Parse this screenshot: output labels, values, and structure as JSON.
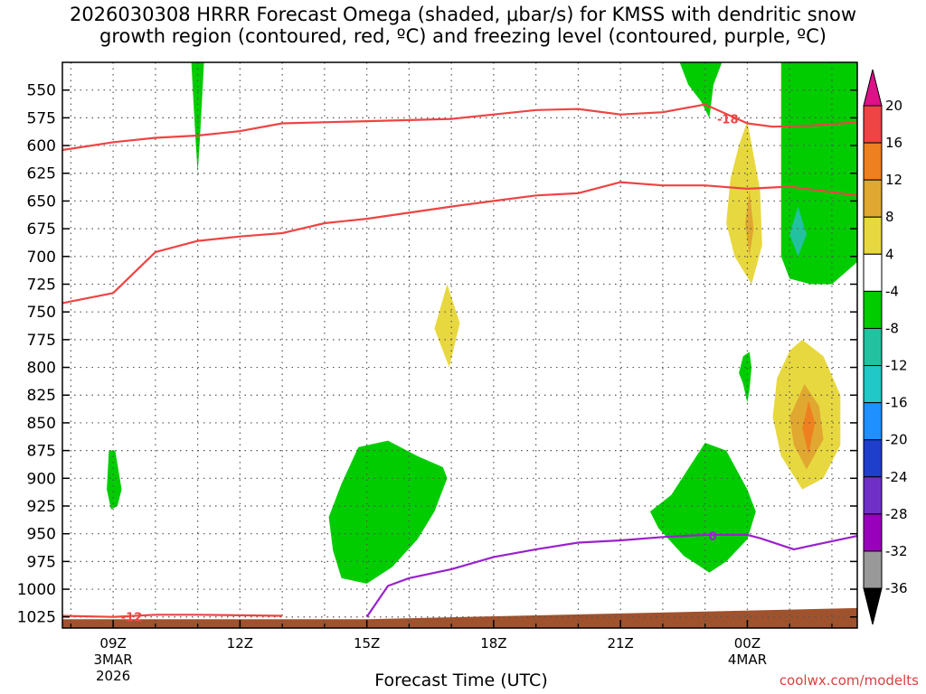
{
  "title_line1": "2026030308 HRRR Forecast Omega (shaded, μbar/s) for KMSS with dendritic snow",
  "title_line2": "growth region (contoured, red, ºC) and freezing level (contoured, purple, ºC)",
  "xlabel": "Forecast Time (UTC)",
  "credit": "coolwx.com/modelts",
  "colors": {
    "snow_contour": "#ee4444",
    "freezing_contour": "#9922cc",
    "terrain": "#a0522d",
    "grid": "#555555"
  },
  "chart_data": {
    "type": "contour",
    "x_domain_hours": [
      7.8,
      26.6
    ],
    "y_domain_hPa": [
      525,
      1035
    ],
    "y_ticks": [
      550,
      575,
      600,
      625,
      650,
      675,
      700,
      725,
      750,
      775,
      800,
      825,
      850,
      875,
      900,
      925,
      950,
      975,
      1000,
      1025
    ],
    "x_ticks": [
      {
        "hour": 9,
        "label": "09Z",
        "sub": [
          "3MAR",
          "2026"
        ]
      },
      {
        "hour": 12,
        "label": "12Z",
        "sub": []
      },
      {
        "hour": 15,
        "label": "15Z",
        "sub": []
      },
      {
        "hour": 18,
        "label": "18Z",
        "sub": []
      },
      {
        "hour": 21,
        "label": "21Z",
        "sub": []
      },
      {
        "hour": 24,
        "label": "00Z",
        "sub": [
          "4MAR"
        ]
      }
    ],
    "minor_x_hours": [
      8,
      10,
      11,
      13,
      14,
      16,
      17,
      19,
      20,
      22,
      23,
      25,
      26
    ],
    "contours": [
      {
        "name": "-18",
        "color": "#ee4444",
        "label_at": [
          23.2,
          576
        ],
        "points": [
          [
            7.8,
            604
          ],
          [
            9,
            597
          ],
          [
            10,
            593
          ],
          [
            11,
            591
          ],
          [
            12,
            587
          ],
          [
            13,
            580
          ],
          [
            15,
            578
          ],
          [
            17,
            576
          ],
          [
            18,
            572
          ],
          [
            19,
            568
          ],
          [
            20,
            567
          ],
          [
            21,
            572
          ],
          [
            22,
            570
          ],
          [
            23,
            563
          ],
          [
            24,
            580
          ],
          [
            24.6,
            583
          ],
          [
            25.5,
            582
          ],
          [
            26.6,
            579
          ]
        ]
      },
      {
        "name": "-12",
        "color": "#ee4444",
        "label_at": [
          9.1,
          1025
        ],
        "points": [
          [
            7.8,
            742
          ],
          [
            9,
            733
          ],
          [
            10,
            696
          ],
          [
            11,
            686
          ],
          [
            12,
            682
          ],
          [
            13,
            679
          ],
          [
            14,
            670
          ],
          [
            15,
            666
          ],
          [
            17,
            655
          ],
          [
            18,
            650
          ],
          [
            19,
            645
          ],
          [
            20,
            643
          ],
          [
            21,
            633
          ],
          [
            22,
            636
          ],
          [
            23,
            636
          ],
          [
            24,
            639
          ],
          [
            25,
            637
          ],
          [
            26.6,
            645
          ]
        ]
      },
      {
        "name": "-12",
        "color": "#ee4444",
        "label_at": null,
        "points": [
          [
            7.8,
            1024
          ],
          [
            9,
            1025
          ],
          [
            10,
            1023
          ],
          [
            11,
            1023
          ],
          [
            12,
            1023.5
          ],
          [
            13,
            1024
          ]
        ]
      },
      {
        "name": "0",
        "color": "#9922cc",
        "label_at": [
          23.0,
          952
        ],
        "points": [
          [
            15,
            1025
          ],
          [
            15.5,
            997
          ],
          [
            16,
            990
          ],
          [
            17,
            982
          ],
          [
            18,
            971
          ],
          [
            19,
            964
          ],
          [
            20,
            958
          ],
          [
            21,
            956
          ],
          [
            22,
            953
          ],
          [
            23,
            951
          ],
          [
            24,
            951
          ],
          [
            24.3,
            954
          ],
          [
            25.1,
            964
          ],
          [
            26.6,
            952
          ]
        ]
      }
    ],
    "terrain_pressure": [
      [
        7.8,
        1027
      ],
      [
        15,
        1027
      ],
      [
        26.6,
        1017
      ]
    ],
    "omega_regions": [
      {
        "name": "green-strip-11z",
        "level": "-8",
        "color": "#00cc00",
        "points": [
          [
            10.85,
            525
          ],
          [
            11.15,
            525
          ],
          [
            11.1,
            560
          ],
          [
            11.05,
            595
          ],
          [
            11.0,
            625
          ],
          [
            10.95,
            595
          ],
          [
            10.9,
            560
          ]
        ]
      },
      {
        "name": "green-top-2230z",
        "level": "-8",
        "color": "#00cc00",
        "points": [
          [
            22.4,
            525
          ],
          [
            23.4,
            525
          ],
          [
            23.2,
            545
          ],
          [
            23.1,
            575
          ],
          [
            22.9,
            560
          ],
          [
            22.6,
            545
          ]
        ]
      },
      {
        "name": "green-right",
        "level": "-8",
        "color": "#00cc00",
        "points": [
          [
            24.8,
            525
          ],
          [
            26.6,
            525
          ],
          [
            26.6,
            705
          ],
          [
            26.3,
            715
          ],
          [
            26.0,
            725
          ],
          [
            25.5,
            725
          ],
          [
            25.0,
            720
          ],
          [
            24.8,
            700
          ],
          [
            24.8,
            600
          ]
        ]
      },
      {
        "name": "green-small-09z",
        "level": "-8",
        "color": "#00cc00",
        "points": [
          [
            8.9,
            875
          ],
          [
            9.05,
            875
          ],
          [
            9.2,
            910
          ],
          [
            9.1,
            925
          ],
          [
            8.95,
            928
          ],
          [
            8.85,
            910
          ]
        ]
      },
      {
        "name": "green-15z",
        "level": "-8",
        "color": "#00cc00",
        "points": [
          [
            14.8,
            872
          ],
          [
            15.5,
            866
          ],
          [
            16.2,
            880
          ],
          [
            16.8,
            890
          ],
          [
            16.9,
            900
          ],
          [
            16.6,
            930
          ],
          [
            16.2,
            955
          ],
          [
            15.6,
            980
          ],
          [
            15.0,
            995
          ],
          [
            14.4,
            990
          ],
          [
            14.2,
            965
          ],
          [
            14.1,
            935
          ],
          [
            14.4,
            905
          ]
        ]
      },
      {
        "name": "green-2300z",
        "level": "-8",
        "color": "#00cc00",
        "points": [
          [
            22.2,
            915
          ],
          [
            23.0,
            868
          ],
          [
            23.5,
            875
          ],
          [
            24.0,
            910
          ],
          [
            24.2,
            930
          ],
          [
            24.0,
            955
          ],
          [
            23.5,
            975
          ],
          [
            23.1,
            985
          ],
          [
            22.5,
            970
          ],
          [
            21.9,
            945
          ],
          [
            21.7,
            930
          ]
        ]
      },
      {
        "name": "green-small-00z",
        "level": "-8",
        "color": "#00cc00",
        "points": [
          [
            23.9,
            790
          ],
          [
            24.05,
            786
          ],
          [
            24.1,
            800
          ],
          [
            24.05,
            820
          ],
          [
            24.0,
            832
          ],
          [
            23.9,
            815
          ],
          [
            23.8,
            805
          ]
        ]
      },
      {
        "name": "yellow-17z",
        "level": "4",
        "color": "#e8d840",
        "points": [
          [
            16.9,
            725
          ],
          [
            17.2,
            760
          ],
          [
            16.95,
            800
          ],
          [
            16.6,
            765
          ]
        ]
      },
      {
        "name": "yellow-00z",
        "level": "4",
        "color": "#e8d840",
        "points": [
          [
            24.0,
            578
          ],
          [
            24.3,
            640
          ],
          [
            24.35,
            690
          ],
          [
            24.1,
            725
          ],
          [
            23.7,
            700
          ],
          [
            23.5,
            670
          ],
          [
            23.6,
            630
          ],
          [
            23.8,
            600
          ]
        ]
      },
      {
        "name": "orange-00z",
        "level": "8",
        "color": "#e0a830",
        "points": [
          [
            24.05,
            640
          ],
          [
            24.15,
            675
          ],
          [
            24.05,
            700
          ],
          [
            23.95,
            670
          ]
        ]
      },
      {
        "name": "yellow-01z",
        "level": "4",
        "color": "#e8d840",
        "points": [
          [
            25.3,
            775
          ],
          [
            25.8,
            790
          ],
          [
            26.2,
            825
          ],
          [
            26.2,
            870
          ],
          [
            25.8,
            900
          ],
          [
            25.3,
            910
          ],
          [
            24.8,
            880
          ],
          [
            24.6,
            845
          ],
          [
            24.7,
            810
          ],
          [
            25.0,
            785
          ]
        ]
      },
      {
        "name": "orange-01z",
        "level": "8",
        "color": "#e0a830",
        "points": [
          [
            25.35,
            815
          ],
          [
            25.7,
            835
          ],
          [
            25.8,
            865
          ],
          [
            25.4,
            892
          ],
          [
            25.1,
            870
          ],
          [
            25.0,
            845
          ]
        ]
      },
      {
        "name": "darkorange-01z",
        "level": "12",
        "color": "#ee8020",
        "points": [
          [
            25.45,
            830
          ],
          [
            25.6,
            850
          ],
          [
            25.45,
            878
          ],
          [
            25.3,
            855
          ]
        ]
      },
      {
        "name": "teal-01z",
        "level": "-12",
        "color": "#22c2a0",
        "points": [
          [
            25.2,
            655
          ],
          [
            25.4,
            680
          ],
          [
            25.2,
            700
          ],
          [
            25.0,
            680
          ]
        ]
      }
    ],
    "colorbar": {
      "levels": [
        "20",
        "16",
        "12",
        "8",
        "4",
        "-4",
        "-8",
        "-12",
        "-16",
        "-20",
        "-24",
        "-28",
        "-32",
        "-36"
      ],
      "colors": [
        "#ee4444",
        "#ee8020",
        "#e0a830",
        "#e8d840",
        "#ffffff",
        "#00cc00",
        "#22c2a0",
        "#20c8c8",
        "#1e90ff",
        "#1e3ecc",
        "#7030c8",
        "#9900bb",
        "#999999"
      ],
      "top_triangle_color": "#dd1188",
      "bottom_triangle_color": "#000000"
    }
  }
}
